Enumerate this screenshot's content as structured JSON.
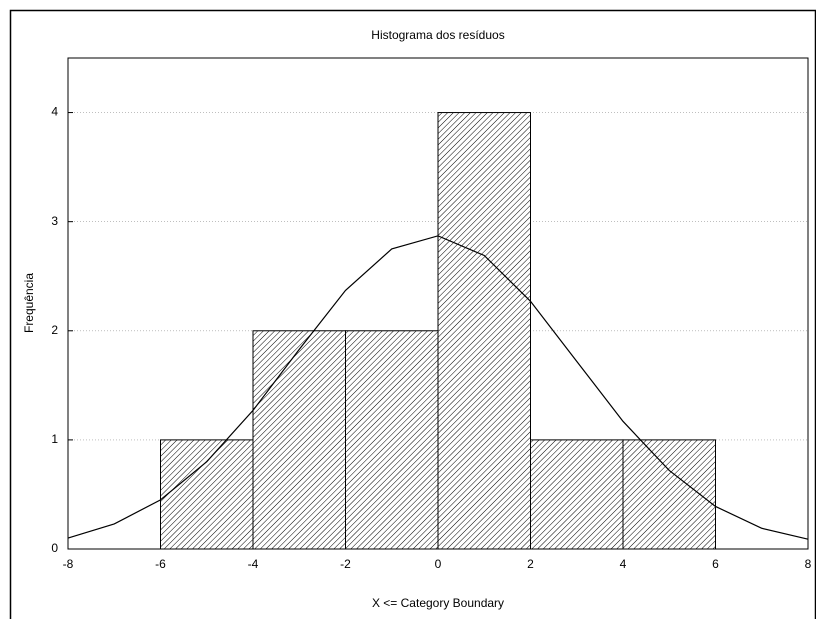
{
  "chart_data": {
    "type": "histogram",
    "title": "Histograma dos resíduos",
    "xlabel": "X <= Category Boundary",
    "ylabel": "Frequência",
    "bins": [
      -6,
      -4,
      -2,
      0,
      2,
      4,
      6
    ],
    "counts": [
      1,
      2,
      2,
      4,
      1,
      1
    ],
    "curve": {
      "x": [
        -8,
        -7,
        -6,
        -5,
        -4,
        -3,
        -2,
        -1,
        0,
        1,
        2,
        3,
        4,
        5,
        6,
        7,
        8
      ],
      "y": [
        0.1,
        0.23,
        0.45,
        0.8,
        1.27,
        1.83,
        2.37,
        2.75,
        2.87,
        2.69,
        2.27,
        1.72,
        1.17,
        0.72,
        0.39,
        0.19,
        0.09
      ]
    },
    "xlim": [
      -8,
      8
    ],
    "xticks": [
      -8,
      -6,
      -4,
      -2,
      0,
      2,
      4,
      6,
      8
    ],
    "ylim": [
      0,
      4.5
    ],
    "yticks": [
      0,
      1,
      2,
      3,
      4
    ],
    "grid": true
  }
}
